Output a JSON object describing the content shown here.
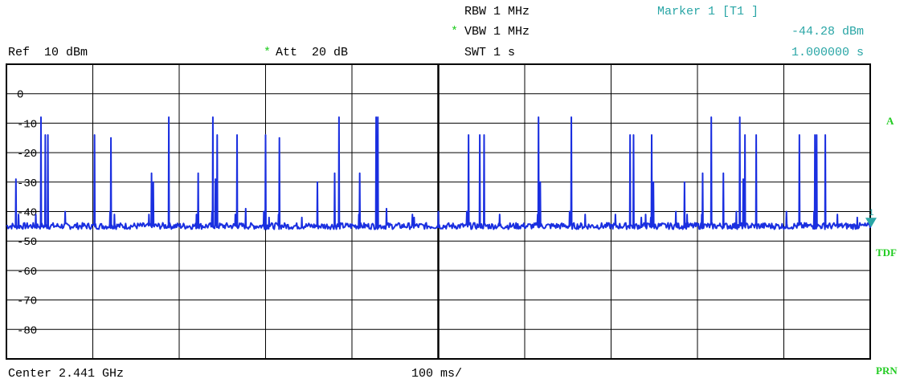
{
  "header": {
    "rbw": "RBW 1 MHz",
    "vbw": "VBW 1 MHz",
    "swt": "SWT 1 s",
    "ref": "Ref  10 dBm",
    "att": "Att  20 dB",
    "star": "*",
    "marker_title": "Marker 1 [T1 ]",
    "marker_level": "-44.28 dBm",
    "marker_time": "1.000000 s"
  },
  "footer": {
    "center": "Center 2.441 GHz",
    "span": "100 ms/"
  },
  "side_labels": {
    "a": "A",
    "tdf": "TDF",
    "prn": "PRN"
  },
  "marker_symbol": "1",
  "colors": {
    "trace": "#1a2fe0",
    "marker": "#2aa6a6",
    "side": "#22cc22",
    "grid": "#000000"
  },
  "chart_data": {
    "type": "line",
    "title": "",
    "xlabel": "",
    "ylabel": "",
    "xlim": [
      0,
      1000
    ],
    "ylim": [
      -90,
      10
    ],
    "x_unit": "ms",
    "y_unit": "dBm",
    "y_ticks": [
      0,
      -10,
      -20,
      -30,
      -40,
      -50,
      -60,
      -70,
      -80
    ],
    "y_tick_labels": [
      "0",
      "-10",
      "-20",
      "-30",
      "-40",
      "-50",
      "-60",
      "-70",
      "-80"
    ],
    "noise_floor": -45,
    "grid": true,
    "peaks": [
      {
        "t": 11,
        "level": -29
      },
      {
        "t": 14,
        "level": -41
      },
      {
        "t": 34,
        "level": -41
      },
      {
        "t": 40,
        "level": -8
      },
      {
        "t": 45,
        "level": -14
      },
      {
        "t": 48,
        "level": -14
      },
      {
        "t": 68,
        "level": -40
      },
      {
        "t": 102,
        "level": -14
      },
      {
        "t": 120,
        "level": -40
      },
      {
        "t": 121,
        "level": -15
      },
      {
        "t": 125,
        "level": -41
      },
      {
        "t": 165,
        "level": -41
      },
      {
        "t": 168,
        "level": -27
      },
      {
        "t": 170,
        "level": -30
      },
      {
        "t": 188,
        "level": -8
      },
      {
        "t": 220,
        "level": -41
      },
      {
        "t": 222,
        "level": -27
      },
      {
        "t": 238,
        "level": -40
      },
      {
        "t": 239,
        "level": -8
      },
      {
        "t": 242,
        "level": -29
      },
      {
        "t": 244,
        "level": -14
      },
      {
        "t": 265,
        "level": -41
      },
      {
        "t": 267,
        "level": -14
      },
      {
        "t": 277,
        "level": -39
      },
      {
        "t": 298,
        "level": -40
      },
      {
        "t": 300,
        "level": -14
      },
      {
        "t": 304,
        "level": -42
      },
      {
        "t": 315,
        "level": -41
      },
      {
        "t": 316,
        "level": -15
      },
      {
        "t": 342,
        "level": -42
      },
      {
        "t": 360,
        "level": -30
      },
      {
        "t": 380,
        "level": -27
      },
      {
        "t": 385,
        "level": -8
      },
      {
        "t": 408,
        "level": -41
      },
      {
        "t": 409,
        "level": -27
      },
      {
        "t": 428,
        "level": -8
      },
      {
        "t": 430,
        "level": -8
      },
      {
        "t": 440,
        "level": -39
      },
      {
        "t": 470,
        "level": -41
      },
      {
        "t": 472,
        "level": -42
      },
      {
        "t": 500,
        "level": -40
      },
      {
        "t": 533,
        "level": -40
      },
      {
        "t": 535,
        "level": -14
      },
      {
        "t": 548,
        "level": -14
      },
      {
        "t": 553,
        "level": -14
      },
      {
        "t": 571,
        "level": -41
      },
      {
        "t": 615,
        "level": -41
      },
      {
        "t": 616,
        "level": -8
      },
      {
        "t": 618,
        "level": -30
      },
      {
        "t": 652,
        "level": -40
      },
      {
        "t": 654,
        "level": -8
      },
      {
        "t": 670,
        "level": -41
      },
      {
        "t": 705,
        "level": -41
      },
      {
        "t": 722,
        "level": -14
      },
      {
        "t": 726,
        "level": -14
      },
      {
        "t": 735,
        "level": -42
      },
      {
        "t": 740,
        "level": -41
      },
      {
        "t": 746,
        "level": -42
      },
      {
        "t": 747,
        "level": -14
      },
      {
        "t": 749,
        "level": -30
      },
      {
        "t": 775,
        "level": -40
      },
      {
        "t": 785,
        "level": -30
      },
      {
        "t": 788,
        "level": -41
      },
      {
        "t": 805,
        "level": -41
      },
      {
        "t": 806,
        "level": -27
      },
      {
        "t": 816,
        "level": -8
      },
      {
        "t": 830,
        "level": -27
      },
      {
        "t": 845,
        "level": -40
      },
      {
        "t": 849,
        "level": -8
      },
      {
        "t": 853,
        "level": -29
      },
      {
        "t": 855,
        "level": -14
      },
      {
        "t": 868,
        "level": -14
      },
      {
        "t": 903,
        "level": -40
      },
      {
        "t": 918,
        "level": -14
      },
      {
        "t": 935,
        "level": -40
      },
      {
        "t": 936,
        "level": -14
      },
      {
        "t": 938,
        "level": -14
      },
      {
        "t": 948,
        "level": -14
      },
      {
        "t": 962,
        "level": -41
      },
      {
        "t": 985,
        "level": -42
      }
    ],
    "marker": {
      "time": "1.000000 s",
      "level": -44.28
    }
  }
}
